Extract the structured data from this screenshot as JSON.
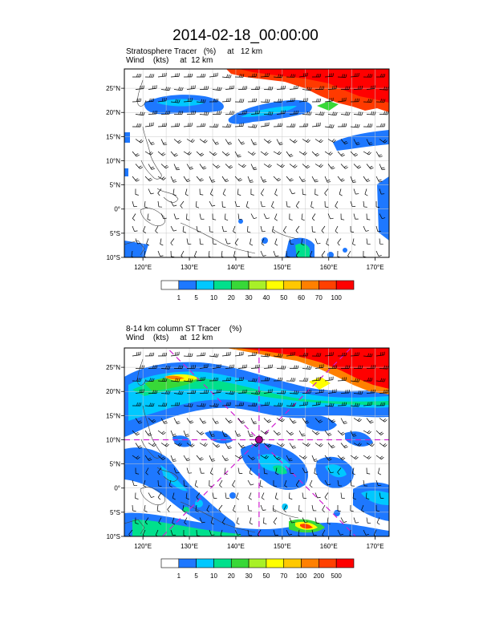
{
  "main_title": "2014-02-18_00:00:00",
  "panels": [
    {
      "id": "top",
      "title_line1": "Stratosphere Tracer   (%)     at   12 km",
      "title_line2": "Wind    (kts)     at  12 km",
      "colorbar_labels": [
        "1",
        "5",
        "10",
        "20",
        "30",
        "40",
        "50",
        "60",
        "70",
        "100"
      ],
      "colorbar_colors": [
        "#ffffff",
        "#1e78ff",
        "#00c8ff",
        "#00e08c",
        "#38d838",
        "#a8f028",
        "#ffff00",
        "#ffc800",
        "#ff8000",
        "#ff4000",
        "#ff0000"
      ]
    },
    {
      "id": "bottom",
      "title_line1": "8-14 km column ST Tracer    (%)",
      "title_line2": "Wind    (kts)     at  12 km",
      "colorbar_labels": [
        "1",
        "5",
        "10",
        "20",
        "30",
        "50",
        "70",
        "100",
        "200",
        "500"
      ],
      "colorbar_colors": [
        "#ffffff",
        "#1e78ff",
        "#00c8ff",
        "#00e08c",
        "#38d838",
        "#a8f028",
        "#ffff00",
        "#ffc800",
        "#ff8000",
        "#ff4000",
        "#ff0000"
      ]
    }
  ],
  "lat_labels": [
    "25°N",
    "20°N",
    "15°N",
    "10°N",
    "5°N",
    "0°",
    "5°S",
    "10°S"
  ],
  "lon_labels": [
    "120°E",
    "130°E",
    "140°E",
    "150°E",
    "160°E",
    "170°E"
  ],
  "lat_range": [
    -10,
    29
  ],
  "lon_range": [
    116,
    173
  ],
  "lat_ticks": [
    25,
    20,
    15,
    10,
    5,
    0,
    -5,
    -10
  ],
  "lon_ticks": [
    120,
    130,
    140,
    150,
    160,
    170
  ],
  "cross_center": {
    "lon": 145,
    "lat": 10
  }
}
